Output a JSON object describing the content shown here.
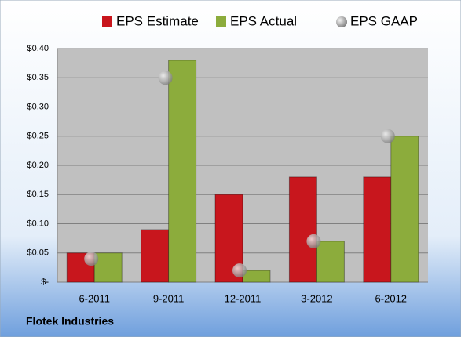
{
  "chart_data": {
    "type": "bar",
    "footer": "Flotek Industries",
    "categories": [
      "6-2011",
      "9-2011",
      "12-2011",
      "3-2012",
      "6-2012"
    ],
    "series": [
      {
        "name": "EPS Estimate",
        "color": "#c8161d",
        "values": [
          0.05,
          0.09,
          0.15,
          0.18,
          0.18
        ]
      },
      {
        "name": "EPS Actual",
        "color": "#8cac3c",
        "values": [
          0.05,
          0.38,
          0.02,
          0.07,
          0.25
        ]
      },
      {
        "name": "EPS GAAP",
        "color": "#a0a0a0",
        "type": "scatter",
        "values": [
          0.04,
          0.35,
          0.02,
          0.07,
          0.25
        ]
      }
    ],
    "ylim": [
      0,
      0.4
    ],
    "yticks": [
      {
        "value": 0,
        "label": "$-"
      },
      {
        "value": 0.05,
        "label": "$0.05"
      },
      {
        "value": 0.1,
        "label": "$0.10"
      },
      {
        "value": 0.15,
        "label": "$0.15"
      },
      {
        "value": 0.2,
        "label": "$0.20"
      },
      {
        "value": 0.25,
        "label": "$0.25"
      },
      {
        "value": 0.3,
        "label": "$0.30"
      },
      {
        "value": 0.35,
        "label": "$0.35"
      },
      {
        "value": 0.4,
        "label": "$0.40"
      }
    ],
    "grid": true
  }
}
